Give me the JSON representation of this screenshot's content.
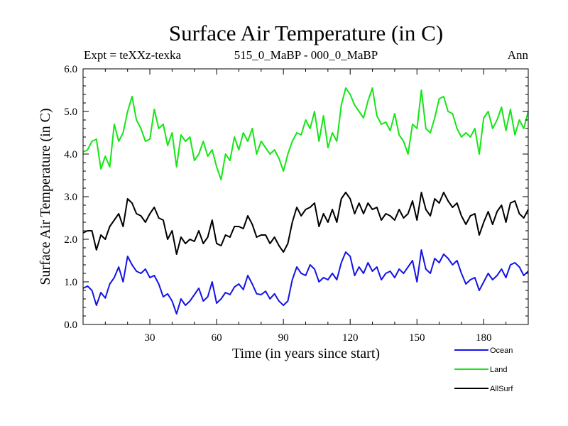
{
  "chart_data": {
    "type": "line",
    "title": "Surface Air Temperature (in C)",
    "subtitle_left": "Expt = teXXz-texka",
    "subtitle_center": "515_0_MaBP - 000_0_MaBP",
    "subtitle_right": "Ann",
    "xlabel": "Time (in years since start)",
    "ylabel": "Surface Air Temperature (in C)",
    "xlim": [
      0,
      200
    ],
    "ylim": [
      0,
      6
    ],
    "xticks": [
      30,
      60,
      90,
      120,
      150,
      180
    ],
    "yticks": [
      0,
      1,
      2,
      3,
      4,
      5,
      6
    ],
    "ytick_labels": [
      "0.0",
      "1.0",
      "2.0",
      "3.0",
      "4.0",
      "5.0",
      "6.0"
    ],
    "x": [
      0,
      2,
      4,
      6,
      8,
      10,
      12,
      14,
      16,
      18,
      20,
      22,
      24,
      26,
      28,
      30,
      32,
      34,
      36,
      38,
      40,
      42,
      44,
      46,
      48,
      50,
      52,
      54,
      56,
      58,
      60,
      62,
      64,
      66,
      68,
      70,
      72,
      74,
      76,
      78,
      80,
      82,
      84,
      86,
      88,
      90,
      92,
      94,
      96,
      98,
      100,
      102,
      104,
      106,
      108,
      110,
      112,
      114,
      116,
      118,
      120,
      122,
      124,
      126,
      128,
      130,
      132,
      134,
      136,
      138,
      140,
      142,
      144,
      146,
      148,
      150,
      152,
      154,
      156,
      158,
      160,
      162,
      164,
      166,
      168,
      170,
      172,
      174,
      176,
      178,
      180,
      182,
      184,
      186,
      188,
      190,
      192,
      194,
      196,
      198,
      200
    ],
    "series": [
      {
        "name": "Ocean",
        "color": "#1414e6",
        "values": [
          0.85,
          0.9,
          0.8,
          0.45,
          0.75,
          0.62,
          0.95,
          1.1,
          1.35,
          1.0,
          1.6,
          1.4,
          1.25,
          1.2,
          1.3,
          1.1,
          1.15,
          0.95,
          0.65,
          0.72,
          0.55,
          0.25,
          0.6,
          0.45,
          0.55,
          0.7,
          0.85,
          0.55,
          0.65,
          1.0,
          0.5,
          0.6,
          0.75,
          0.7,
          0.88,
          0.95,
          0.82,
          1.15,
          0.95,
          0.72,
          0.7,
          0.78,
          0.6,
          0.72,
          0.55,
          0.45,
          0.55,
          1.05,
          1.35,
          1.2,
          1.15,
          1.4,
          1.3,
          1.0,
          1.1,
          1.05,
          1.2,
          1.05,
          1.45,
          1.7,
          1.6,
          1.15,
          1.35,
          1.2,
          1.45,
          1.25,
          1.35,
          1.05,
          1.2,
          1.25,
          1.1,
          1.3,
          1.2,
          1.35,
          1.5,
          1.0,
          1.75,
          1.3,
          1.2,
          1.55,
          1.45,
          1.65,
          1.55,
          1.4,
          1.5,
          1.2,
          0.95,
          1.05,
          1.1,
          0.8,
          1.0,
          1.2,
          1.05,
          1.15,
          1.3,
          1.1,
          1.4,
          1.45,
          1.35,
          1.15,
          1.25
        ]
      },
      {
        "name": "Land",
        "color": "#14e614",
        "values": [
          4.05,
          4.1,
          4.3,
          4.35,
          3.65,
          3.95,
          3.7,
          4.7,
          4.3,
          4.5,
          5.0,
          5.35,
          4.8,
          4.6,
          4.3,
          4.35,
          5.05,
          4.6,
          4.7,
          4.2,
          4.5,
          3.7,
          4.45,
          4.3,
          4.4,
          3.85,
          4.0,
          4.3,
          3.95,
          4.1,
          3.7,
          3.4,
          4.0,
          3.85,
          4.4,
          4.1,
          4.5,
          4.3,
          4.6,
          4.0,
          4.3,
          4.15,
          4.0,
          4.1,
          3.9,
          3.6,
          4.0,
          4.3,
          4.5,
          4.45,
          4.8,
          4.6,
          5.0,
          4.3,
          4.9,
          4.15,
          4.5,
          4.3,
          5.15,
          5.55,
          5.4,
          5.15,
          5.0,
          4.85,
          5.25,
          5.55,
          4.9,
          4.7,
          4.75,
          4.55,
          4.95,
          4.45,
          4.3,
          4.0,
          4.7,
          4.6,
          5.5,
          4.6,
          4.5,
          4.85,
          5.3,
          5.35,
          5.0,
          4.95,
          4.6,
          4.4,
          4.5,
          4.4,
          4.6,
          4.0,
          4.85,
          5.0,
          4.6,
          4.8,
          5.1,
          4.55,
          5.05,
          4.45,
          4.8,
          4.6,
          5.0
        ]
      },
      {
        "name": "AllSurf",
        "color": "#000000",
        "values": [
          2.15,
          2.2,
          2.2,
          1.75,
          2.1,
          2.0,
          2.3,
          2.45,
          2.6,
          2.3,
          2.95,
          2.85,
          2.6,
          2.55,
          2.4,
          2.6,
          2.75,
          2.5,
          2.45,
          2.0,
          2.2,
          1.65,
          2.05,
          1.9,
          2.0,
          1.95,
          2.2,
          1.9,
          2.05,
          2.45,
          1.9,
          1.85,
          2.1,
          2.05,
          2.3,
          2.3,
          2.25,
          2.55,
          2.35,
          2.05,
          2.1,
          2.1,
          1.9,
          2.05,
          1.85,
          1.7,
          1.9,
          2.4,
          2.75,
          2.55,
          2.7,
          2.75,
          2.85,
          2.3,
          2.6,
          2.4,
          2.7,
          2.4,
          2.95,
          3.1,
          2.95,
          2.6,
          2.85,
          2.6,
          2.85,
          2.7,
          2.75,
          2.45,
          2.6,
          2.55,
          2.45,
          2.7,
          2.5,
          2.6,
          2.9,
          2.45,
          3.1,
          2.7,
          2.55,
          2.95,
          2.85,
          3.1,
          2.9,
          2.75,
          2.85,
          2.55,
          2.35,
          2.55,
          2.6,
          2.1,
          2.4,
          2.65,
          2.35,
          2.65,
          2.8,
          2.4,
          2.85,
          2.9,
          2.6,
          2.5,
          2.7
        ]
      }
    ],
    "legend": {
      "placement": "bottom-right",
      "entries": [
        "Ocean",
        "Land",
        "AllSurf"
      ]
    }
  }
}
